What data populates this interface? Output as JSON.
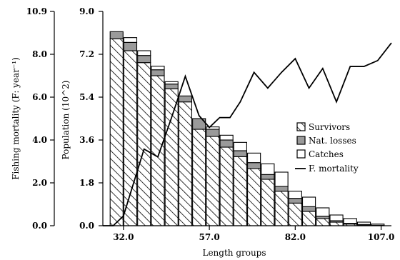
{
  "chart_data": {
    "type": "bar",
    "stacked": true,
    "xlabel": "Length groups",
    "ylabel_left": "Fishing mortality (F: year⁻¹)",
    "ylabel_right": "Population (10^2)",
    "x_tick_labels": [
      "32.0",
      "57.0",
      "82.0",
      "107.0"
    ],
    "x_ticks": [
      32,
      57,
      82,
      107
    ],
    "x": [
      30,
      34,
      38,
      42,
      46,
      50,
      54,
      58,
      62,
      66,
      70,
      74,
      78,
      82,
      86,
      90,
      94,
      98,
      102,
      106
    ],
    "xlim": [
      26,
      110
    ],
    "ylim_population": [
      0,
      9.0
    ],
    "population_ticks": [
      "0.0",
      "1.8",
      "3.6",
      "5.4",
      "7.2",
      "9.0"
    ],
    "ylim_mortality": [
      0,
      10.9
    ],
    "mortality_ticks": [
      "0.0",
      "2.0",
      "4.0",
      "6.0",
      "8.0",
      "10.9"
    ],
    "series": [
      {
        "name": "Survivors",
        "pattern": "hatched",
        "values": [
          7.85,
          7.35,
          6.85,
          6.3,
          5.75,
          5.2,
          4.05,
          3.75,
          3.3,
          2.9,
          2.4,
          1.95,
          1.45,
          0.95,
          0.6,
          0.3,
          0.15,
          0.07,
          0.03,
          0.01
        ]
      },
      {
        "name": "Nat. losses",
        "color": "#9a9a9a",
        "values": [
          0.3,
          0.35,
          0.3,
          0.25,
          0.2,
          0.25,
          0.45,
          0.3,
          0.3,
          0.25,
          0.25,
          0.2,
          0.2,
          0.2,
          0.2,
          0.1,
          0.06,
          0.03,
          0.02,
          0.01
        ]
      },
      {
        "name": "Catches",
        "color": "#ffffff",
        "values": [
          0.0,
          0.2,
          0.2,
          0.15,
          0.1,
          0.0,
          0.0,
          0.1,
          0.2,
          0.35,
          0.4,
          0.45,
          0.6,
          0.3,
          0.4,
          0.35,
          0.24,
          0.2,
          0.1,
          0.05
        ]
      }
    ],
    "mortality_line": {
      "name": "F. mortality",
      "x": [
        26,
        29,
        32,
        38,
        42,
        46,
        50,
        54,
        57,
        60,
        63,
        66,
        70,
        74,
        78,
        82,
        86,
        90,
        94,
        98,
        102,
        106,
        110
      ],
      "values": [
        0.0,
        0.0,
        0.5,
        3.9,
        3.5,
        5.5,
        7.6,
        5.6,
        5.0,
        5.5,
        5.5,
        6.3,
        7.8,
        7.0,
        7.8,
        8.5,
        7.0,
        8.0,
        6.3,
        8.1,
        8.1,
        8.4,
        9.3
      ]
    },
    "legend_position": "right-middle"
  },
  "colors": {
    "axis": "#000000",
    "nat_losses": "#9a9a9a",
    "catches": "#ffffff",
    "line": "#000000"
  }
}
